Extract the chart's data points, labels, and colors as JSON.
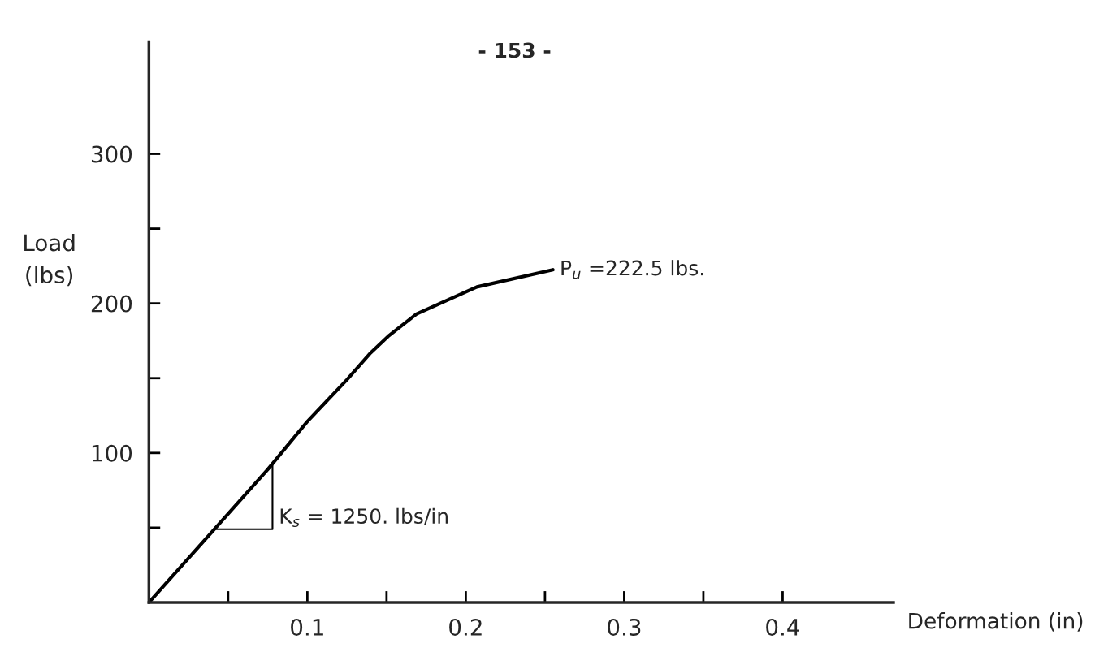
{
  "chart_data": {
    "type": "line",
    "xlabel": "Deformation (in)",
    "ylabel": "Load\n(lbs)",
    "x": [
      0,
      0.075,
      0.1,
      0.125,
      0.14,
      0.151,
      0.169,
      0.207,
      0.255
    ],
    "series": [
      {
        "color": "#000000",
        "values": [
          0,
          89,
          121,
          149,
          167,
          178,
          193,
          211,
          222.5
        ]
      }
    ],
    "xlim": [
      0,
      0.47
    ],
    "ylim": [
      0,
      375
    ],
    "xticks": [
      {
        "value": 0.05,
        "label": null
      },
      {
        "value": 0.1,
        "label": "0.1"
      },
      {
        "value": 0.15,
        "label": null
      },
      {
        "value": 0.2,
        "label": "0.2"
      },
      {
        "value": 0.25,
        "label": null
      },
      {
        "value": 0.3,
        "label": "0.3"
      },
      {
        "value": 0.35,
        "label": null
      },
      {
        "value": 0.4,
        "label": "0.4"
      }
    ],
    "yticks": [
      {
        "value": 50,
        "label": null
      },
      100,
      {
        "value": 150,
        "label": null
      },
      200,
      {
        "value": 250,
        "label": null
      },
      300
    ],
    "grid": false,
    "marker": "none",
    "line_style": "solid",
    "annotations": [
      "- 153 -",
      {
        "text": "P$_{u}$ =222.5 lbs.",
        "x": 0.255,
        "y": 222.5
      },
      "K$_{s}$ = 1250. lbs/in"
    ]
  }
}
